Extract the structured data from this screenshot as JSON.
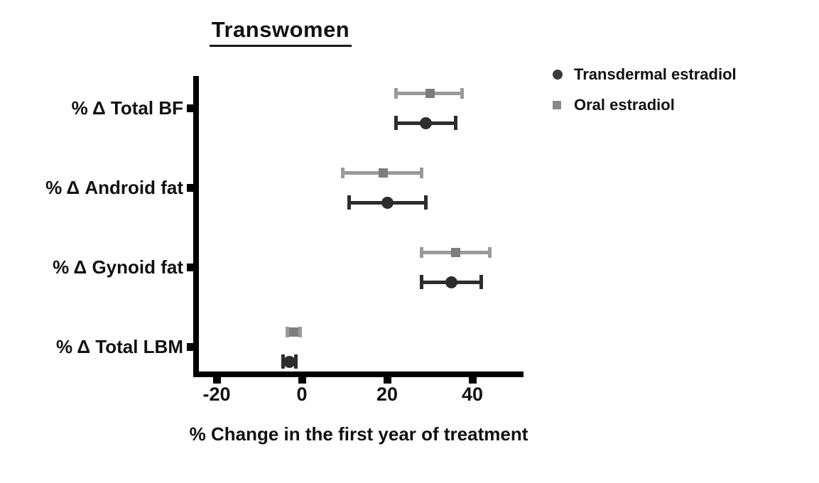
{
  "title": "Transwomen",
  "x_caption": "% Change in the first year of treatment",
  "legend": {
    "items": [
      {
        "label": "Transdermal estradiol",
        "marker": "circle",
        "color": "#3a3a3a"
      },
      {
        "label": "Oral estradiol",
        "marker": "square",
        "color": "#8a8a8a"
      }
    ]
  },
  "chart_data": {
    "type": "scatter",
    "subtype": "horizontal-dot-plot-with-error-bars",
    "title": "Transwomen",
    "xlabel": "% Change in the first year of treatment",
    "ylabel": "",
    "categories": [
      "% Δ Total BF",
      "% Δ Android fat",
      "% Δ Gynoid fat",
      "% Δ Total LBM"
    ],
    "xticks": [
      -20,
      0,
      20,
      40
    ],
    "xtick_labels": [
      "-20",
      "0",
      "20",
      "40"
    ],
    "xlim": [
      -25.5,
      51.5
    ],
    "grid": false,
    "legend_position": "top-right",
    "series": [
      {
        "name": "Oral estradiol",
        "marker": "square",
        "marker_color": "#7d7d7d",
        "line_color": "#9a9a9a",
        "values": [
          30,
          19,
          36,
          -2
        ],
        "ci_low": [
          22,
          9.5,
          28,
          -3.5
        ],
        "ci_high": [
          37.5,
          28,
          44,
          -0.5
        ]
      },
      {
        "name": "Transdermal estradiol",
        "marker": "circle",
        "marker_color": "#2d2d2d",
        "line_color": "#2d2d2d",
        "values": [
          29,
          20,
          35,
          -3
        ],
        "ci_low": [
          22,
          11,
          28,
          -4.5
        ],
        "ci_high": [
          36,
          29,
          42,
          -1.5
        ]
      }
    ]
  }
}
